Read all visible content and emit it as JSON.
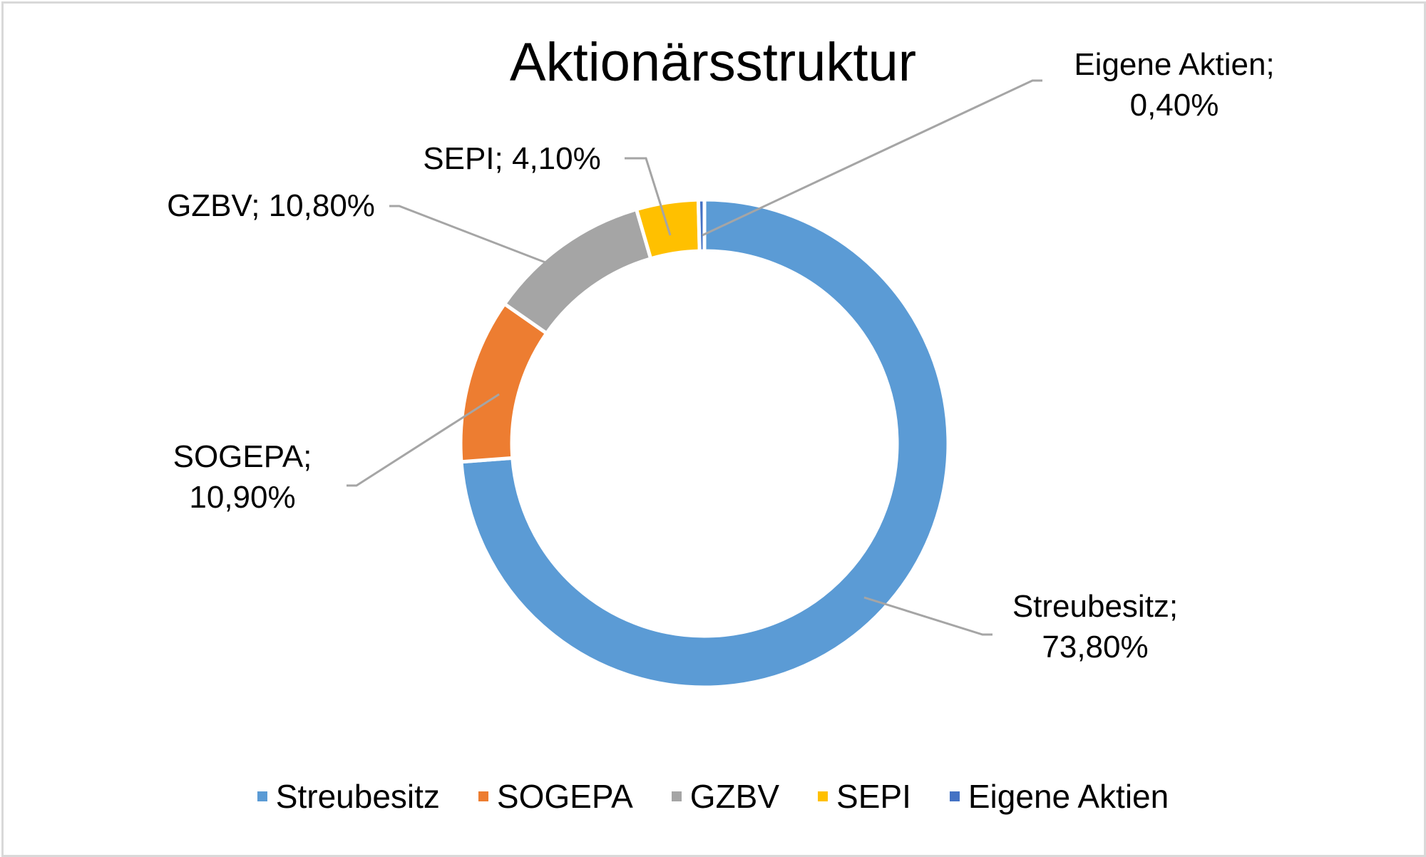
{
  "chart_data": {
    "type": "donut",
    "title": "Aktionärsstruktur",
    "series": [
      {
        "name": "Streubesitz",
        "value": 73.8,
        "color": "#5b9bd5",
        "label_line1": "Streubesitz;",
        "label_line2": "73,80%"
      },
      {
        "name": "SOGEPA",
        "value": 10.9,
        "color": "#ed7d31",
        "label_line1": "SOGEPA;",
        "label_line2": "10,90%"
      },
      {
        "name": "GZBV",
        "value": 10.8,
        "color": "#a5a5a5",
        "label_line1": "GZBV; 10,80%",
        "label_line2": ""
      },
      {
        "name": "SEPI",
        "value": 4.1,
        "color": "#ffc000",
        "label_line1": "SEPI; 4,10%",
        "label_line2": ""
      },
      {
        "name": "Eigene Aktien",
        "value": 0.4,
        "color": "#4472c4",
        "label_line1": "Eigene Aktien;",
        "label_line2": "0,40%"
      }
    ],
    "legend_position": "bottom",
    "leader_line_color": "#a5a5a5"
  }
}
